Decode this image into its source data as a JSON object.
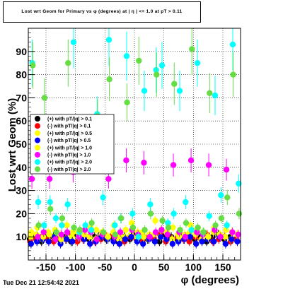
{
  "title": "Lost wrt Geom for Primary vs φ (degrees) at | η | <= 1.0 at pT > 0.11",
  "datestamp": "Tue Dec 21 12:54:42 2021",
  "chart_data": {
    "type": "scatter",
    "title": "Lost wrt Geom for Primary vs φ (degrees) at | η | <= 1.0 at pT > 0.11",
    "xlabel": "φ (degrees)",
    "ylabel": "Lost wrt Geom (%)",
    "xlim": [
      -180,
      180
    ],
    "ylim": [
      0,
      100
    ],
    "xticks": [
      -150,
      -100,
      -50,
      0,
      50,
      100,
      150
    ],
    "yticks": [
      10,
      20,
      30,
      40,
      50,
      60,
      70,
      80,
      90
    ],
    "grid": true,
    "legend_position": "middle-left",
    "series": [
      {
        "name": "(+) with pT/|q| > 0.1",
        "color": "#000000",
        "x": [
          -175,
          -165,
          -155,
          -145,
          -135,
          -125,
          -115,
          -105,
          -95,
          -85,
          -75,
          -65,
          -55,
          -45,
          -35,
          -25,
          -15,
          -5,
          5,
          15,
          25,
          35,
          45,
          55,
          65,
          75,
          85,
          95,
          105,
          115,
          125,
          135,
          145,
          155,
          165,
          175
        ],
        "y": [
          9,
          10,
          8,
          11,
          10,
          9,
          10,
          8,
          11,
          10,
          9,
          10,
          11,
          9,
          10,
          8,
          10,
          9,
          11,
          10,
          9,
          10,
          8,
          11,
          10,
          9,
          10,
          11,
          9,
          10,
          8,
          10,
          11,
          9,
          10,
          9
        ]
      },
      {
        "name": "(-) with pT/|q| > 0.1",
        "color": "#ff0000",
        "x": [
          -175,
          -165,
          -155,
          -145,
          -135,
          -125,
          -115,
          -105,
          -95,
          -85,
          -75,
          -65,
          -55,
          -45,
          -35,
          -25,
          -15,
          -5,
          5,
          15,
          25,
          35,
          45,
          55,
          65,
          75,
          85,
          95,
          105,
          115,
          125,
          135,
          145,
          155,
          165,
          175
        ],
        "y": [
          8,
          9,
          10,
          9,
          8,
          10,
          9,
          11,
          8,
          9,
          10,
          8,
          9,
          10,
          11,
          9,
          8,
          10,
          9,
          8,
          10,
          9,
          11,
          8,
          9,
          10,
          9,
          8,
          10,
          9,
          11,
          8,
          9,
          10,
          8,
          9
        ]
      },
      {
        "name": "(+) with pT/|q| > 0.5",
        "color": "#ffff00",
        "x": [
          -175,
          -165,
          -155,
          -145,
          -135,
          -125,
          -115,
          -105,
          -95,
          -85,
          -75,
          -65,
          -55,
          -45,
          -35,
          -25,
          -15,
          -5,
          5,
          15,
          25,
          35,
          45,
          55,
          65,
          75,
          85,
          95,
          105,
          115,
          125,
          135,
          145,
          155,
          165,
          175
        ],
        "y": [
          10,
          11,
          9,
          12,
          10,
          11,
          9,
          10,
          12,
          11,
          10,
          9,
          11,
          10,
          12,
          9,
          10,
          11,
          10,
          12,
          9,
          11,
          10,
          12,
          9,
          11,
          10,
          12,
          11,
          9,
          10,
          12,
          11,
          10,
          9,
          11
        ]
      },
      {
        "name": "(-) with pT/|q| > 0.5",
        "color": "#0000ff",
        "x": [
          -175,
          -165,
          -155,
          -145,
          -135,
          -125,
          -115,
          -105,
          -95,
          -85,
          -75,
          -65,
          -55,
          -45,
          -35,
          -25,
          -15,
          -5,
          5,
          15,
          25,
          35,
          45,
          55,
          65,
          75,
          85,
          95,
          105,
          115,
          125,
          135,
          145,
          155,
          165,
          175
        ],
        "y": [
          7,
          8,
          9,
          8,
          10,
          7,
          9,
          8,
          10,
          9,
          7,
          8,
          10,
          9,
          8,
          7,
          9,
          10,
          8,
          7,
          9,
          8,
          10,
          9,
          7,
          8,
          9,
          10,
          7,
          8,
          9,
          8,
          10,
          7,
          9,
          8
        ]
      },
      {
        "name": "(+) with pT/|q| > 1.0",
        "color": "#ffff00",
        "x": [
          -175,
          -165,
          -155,
          -145,
          -135,
          -125,
          -115,
          -105,
          -95,
          -85,
          -75,
          -65,
          -55,
          -45,
          -35,
          -25,
          -15,
          -5,
          5,
          15,
          25,
          35,
          45,
          55,
          65,
          75,
          85,
          95,
          105,
          115,
          125,
          135,
          145,
          155,
          165,
          175
        ],
        "y": [
          12,
          14,
          10,
          11,
          13,
          9,
          15,
          12,
          10,
          11,
          14,
          13,
          12,
          10,
          15,
          11,
          13,
          16,
          12,
          10,
          11,
          17,
          13,
          12,
          14,
          10,
          11,
          15,
          13,
          12,
          10,
          14,
          11,
          13,
          12,
          11
        ]
      },
      {
        "name": "(-) with pT/|q| > 1.0",
        "color": "#ff00ff",
        "x": [
          -175,
          -165,
          -155,
          -145,
          -135,
          -125,
          -115,
          -105,
          -95,
          -85,
          -75,
          -65,
          -55,
          -45,
          -35,
          -25,
          -15,
          -5,
          5,
          15,
          25,
          35,
          45,
          55,
          65,
          75,
          85,
          95,
          105,
          115,
          125,
          135,
          145,
          155,
          165,
          175
        ],
        "y": [
          35,
          10,
          12,
          35,
          9,
          11,
          12,
          38,
          10,
          13,
          12,
          9,
          11,
          35,
          10,
          12,
          43,
          13,
          11,
          42,
          10,
          12,
          13,
          11,
          41,
          12,
          10,
          43,
          12,
          11,
          41,
          13,
          10,
          39,
          12,
          11
        ]
      },
      {
        "name": "(+) with pT/|q| > 2.0",
        "color": "#00ffff",
        "x": [
          -175,
          -165,
          -155,
          -145,
          -135,
          -125,
          -115,
          -105,
          -95,
          -85,
          -75,
          -65,
          -55,
          -45,
          -35,
          -25,
          -15,
          -5,
          5,
          15,
          25,
          35,
          45,
          55,
          65,
          75,
          85,
          95,
          105,
          115,
          125,
          135,
          145,
          155,
          165,
          175
        ],
        "y": [
          85,
          25,
          15,
          25,
          18,
          15,
          24,
          94,
          12,
          15,
          13,
          63,
          27,
          95,
          15,
          18,
          88,
          20,
          10,
          73,
          24,
          82,
          84,
          16,
          20,
          73,
          25,
          13,
          85,
          12,
          19,
          71,
          28,
          15,
          93,
          33
        ]
      },
      {
        "name": "(-) with pT/|q| > 2.0",
        "color": "#66dd44",
        "x": [
          -175,
          -165,
          -155,
          -145,
          -135,
          -125,
          -115,
          -105,
          -95,
          -85,
          -75,
          -65,
          -55,
          -45,
          -35,
          -25,
          -15,
          -5,
          5,
          15,
          25,
          35,
          45,
          55,
          65,
          75,
          85,
          95,
          105,
          115,
          125,
          135,
          145,
          155,
          165,
          175
        ],
        "y": [
          84,
          15,
          70,
          22,
          12,
          18,
          85,
          14,
          13,
          55,
          16,
          62,
          12,
          78,
          11,
          18,
          68,
          14,
          86,
          13,
          20,
          80,
          17,
          14,
          76,
          13,
          16,
          91,
          14,
          12,
          72,
          15,
          18,
          27,
          80,
          20
        ]
      }
    ]
  }
}
